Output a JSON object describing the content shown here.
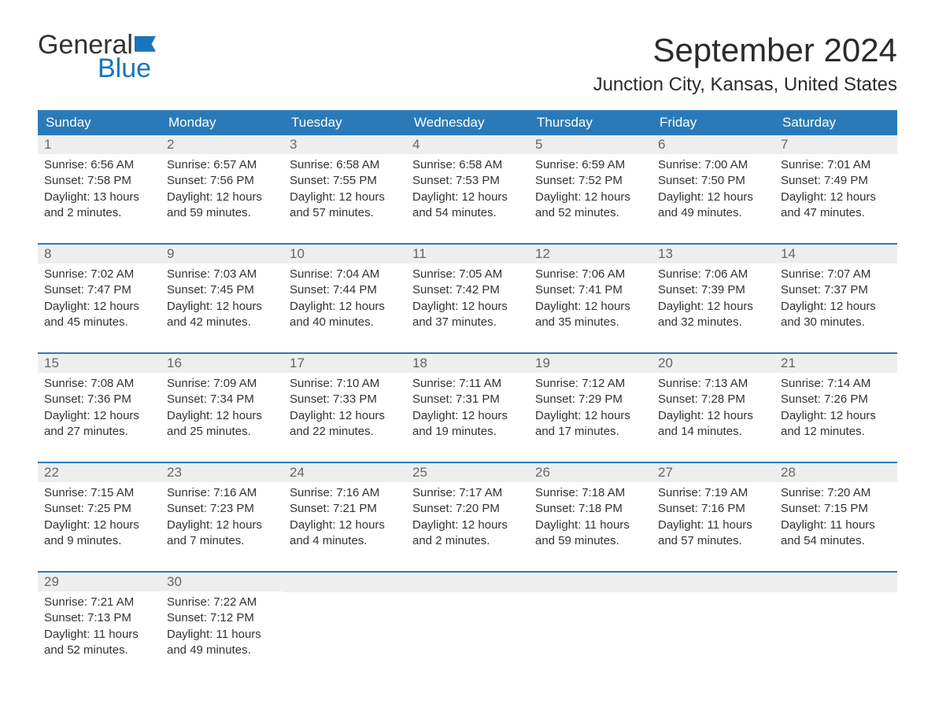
{
  "logo": {
    "word1": "General",
    "word2": "Blue"
  },
  "title": "September 2024",
  "location": "Junction City, Kansas, United States",
  "colors": {
    "header_bg": "#2a7ab9",
    "header_text": "#ffffff",
    "row_separator": "#2a7ab9",
    "daynum_bg": "#eeeeee",
    "daynum_text": "#666666",
    "body_text": "#333333",
    "logo_blue": "#1a75bc",
    "page_bg": "#ffffff"
  },
  "calendar": {
    "type": "month-grid",
    "columns": 7,
    "weekdays": [
      "Sunday",
      "Monday",
      "Tuesday",
      "Wednesday",
      "Thursday",
      "Friday",
      "Saturday"
    ],
    "font_family": "Arial",
    "title_fontsize": 42,
    "location_fontsize": 24,
    "weekday_fontsize": 17,
    "body_fontsize": 15,
    "days": [
      {
        "n": 1,
        "sunrise": "6:56 AM",
        "sunset": "7:58 PM",
        "daylight": "13 hours and 2 minutes."
      },
      {
        "n": 2,
        "sunrise": "6:57 AM",
        "sunset": "7:56 PM",
        "daylight": "12 hours and 59 minutes."
      },
      {
        "n": 3,
        "sunrise": "6:58 AM",
        "sunset": "7:55 PM",
        "daylight": "12 hours and 57 minutes."
      },
      {
        "n": 4,
        "sunrise": "6:58 AM",
        "sunset": "7:53 PM",
        "daylight": "12 hours and 54 minutes."
      },
      {
        "n": 5,
        "sunrise": "6:59 AM",
        "sunset": "7:52 PM",
        "daylight": "12 hours and 52 minutes."
      },
      {
        "n": 6,
        "sunrise": "7:00 AM",
        "sunset": "7:50 PM",
        "daylight": "12 hours and 49 minutes."
      },
      {
        "n": 7,
        "sunrise": "7:01 AM",
        "sunset": "7:49 PM",
        "daylight": "12 hours and 47 minutes."
      },
      {
        "n": 8,
        "sunrise": "7:02 AM",
        "sunset": "7:47 PM",
        "daylight": "12 hours and 45 minutes."
      },
      {
        "n": 9,
        "sunrise": "7:03 AM",
        "sunset": "7:45 PM",
        "daylight": "12 hours and 42 minutes."
      },
      {
        "n": 10,
        "sunrise": "7:04 AM",
        "sunset": "7:44 PM",
        "daylight": "12 hours and 40 minutes."
      },
      {
        "n": 11,
        "sunrise": "7:05 AM",
        "sunset": "7:42 PM",
        "daylight": "12 hours and 37 minutes."
      },
      {
        "n": 12,
        "sunrise": "7:06 AM",
        "sunset": "7:41 PM",
        "daylight": "12 hours and 35 minutes."
      },
      {
        "n": 13,
        "sunrise": "7:06 AM",
        "sunset": "7:39 PM",
        "daylight": "12 hours and 32 minutes."
      },
      {
        "n": 14,
        "sunrise": "7:07 AM",
        "sunset": "7:37 PM",
        "daylight": "12 hours and 30 minutes."
      },
      {
        "n": 15,
        "sunrise": "7:08 AM",
        "sunset": "7:36 PM",
        "daylight": "12 hours and 27 minutes."
      },
      {
        "n": 16,
        "sunrise": "7:09 AM",
        "sunset": "7:34 PM",
        "daylight": "12 hours and 25 minutes."
      },
      {
        "n": 17,
        "sunrise": "7:10 AM",
        "sunset": "7:33 PM",
        "daylight": "12 hours and 22 minutes."
      },
      {
        "n": 18,
        "sunrise": "7:11 AM",
        "sunset": "7:31 PM",
        "daylight": "12 hours and 19 minutes."
      },
      {
        "n": 19,
        "sunrise": "7:12 AM",
        "sunset": "7:29 PM",
        "daylight": "12 hours and 17 minutes."
      },
      {
        "n": 20,
        "sunrise": "7:13 AM",
        "sunset": "7:28 PM",
        "daylight": "12 hours and 14 minutes."
      },
      {
        "n": 21,
        "sunrise": "7:14 AM",
        "sunset": "7:26 PM",
        "daylight": "12 hours and 12 minutes."
      },
      {
        "n": 22,
        "sunrise": "7:15 AM",
        "sunset": "7:25 PM",
        "daylight": "12 hours and 9 minutes."
      },
      {
        "n": 23,
        "sunrise": "7:16 AM",
        "sunset": "7:23 PM",
        "daylight": "12 hours and 7 minutes."
      },
      {
        "n": 24,
        "sunrise": "7:16 AM",
        "sunset": "7:21 PM",
        "daylight": "12 hours and 4 minutes."
      },
      {
        "n": 25,
        "sunrise": "7:17 AM",
        "sunset": "7:20 PM",
        "daylight": "12 hours and 2 minutes."
      },
      {
        "n": 26,
        "sunrise": "7:18 AM",
        "sunset": "7:18 PM",
        "daylight": "11 hours and 59 minutes."
      },
      {
        "n": 27,
        "sunrise": "7:19 AM",
        "sunset": "7:16 PM",
        "daylight": "11 hours and 57 minutes."
      },
      {
        "n": 28,
        "sunrise": "7:20 AM",
        "sunset": "7:15 PM",
        "daylight": "11 hours and 54 minutes."
      },
      {
        "n": 29,
        "sunrise": "7:21 AM",
        "sunset": "7:13 PM",
        "daylight": "11 hours and 52 minutes."
      },
      {
        "n": 30,
        "sunrise": "7:22 AM",
        "sunset": "7:12 PM",
        "daylight": "11 hours and 49 minutes."
      }
    ],
    "labels": {
      "sunrise_prefix": "Sunrise: ",
      "sunset_prefix": "Sunset: ",
      "daylight_prefix": "Daylight: "
    }
  }
}
